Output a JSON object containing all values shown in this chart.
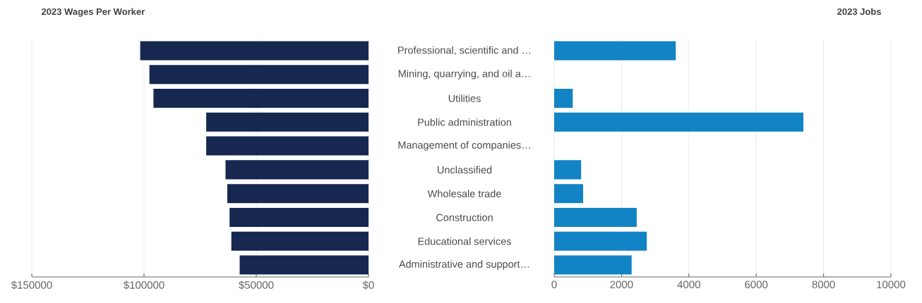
{
  "chart_data": [
    {
      "type": "bar",
      "orientation": "horizontal",
      "title": "2023 Wages Per Worker",
      "color": "#162850",
      "grid": "x",
      "categories": [
        "Professional, scientific and …",
        "Mining, quarrying, and oil a…",
        "Utilities",
        "Public administration",
        "Management of companies…",
        "Unclassified",
        "Wholesale trade",
        "Construction",
        "Educational services",
        "Administrative and support…"
      ],
      "values": [
        101700,
        97600,
        95800,
        72300,
        72300,
        63700,
        62900,
        61900,
        61100,
        57400
      ],
      "xlim": [
        150000,
        0
      ],
      "xticks": [
        {
          "value": 150000,
          "label": "$150000"
        },
        {
          "value": 100000,
          "label": "$100000"
        },
        {
          "value": 50000,
          "label": "$50000"
        },
        {
          "value": 0,
          "label": "$0"
        }
      ]
    },
    {
      "type": "bar",
      "orientation": "horizontal",
      "title": "2023 Jobs",
      "color": "#1283c4",
      "grid": "x",
      "tick_labels": "x",
      "categories": [
        null,
        null,
        null,
        null,
        null,
        null,
        null,
        null,
        null,
        null
      ],
      "values": [
        3610,
        null,
        550,
        7400,
        null,
        800,
        860,
        2450,
        2750,
        2300
      ],
      "xlim": [
        0,
        10000
      ],
      "xticks": [
        0,
        2000,
        4000,
        6000,
        8000,
        10000
      ]
    }
  ]
}
